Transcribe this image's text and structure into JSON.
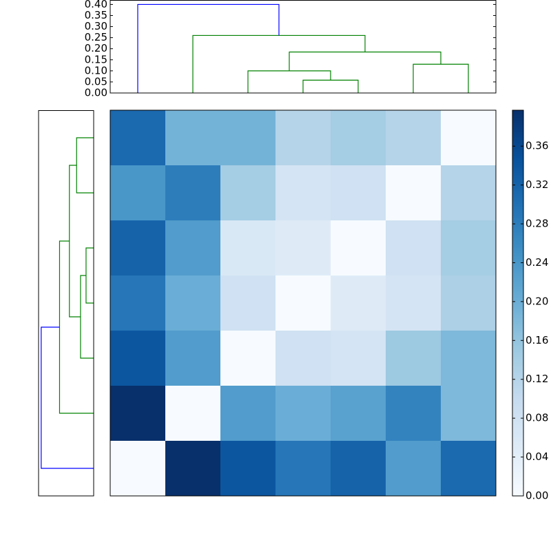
{
  "chart_data": [
    {
      "type": "dendrogram",
      "orientation": "top",
      "linkage": [
        [
          3,
          4,
          0.058
        ],
        [
          2,
          7,
          0.1
        ],
        [
          5,
          6,
          0.13
        ],
        [
          8,
          9,
          0.185
        ],
        [
          1,
          10,
          0.26
        ],
        [
          0,
          11,
          0.4
        ]
      ],
      "colors": [
        "#008000",
        "#008000",
        "#008000",
        "#008000",
        "#008000",
        "#0000ff"
      ],
      "ylim": [
        0,
        0.42
      ],
      "yticks": [
        {
          "value": 0,
          "label": "0.00"
        },
        {
          "value": 0.05,
          "label": "0.05"
        },
        {
          "value": 0.1,
          "label": "0.10"
        },
        {
          "value": 0.15,
          "label": "0.15"
        },
        {
          "value": 0.2,
          "label": "0.20"
        },
        {
          "value": 0.25,
          "label": "0.25"
        },
        {
          "value": 0.3,
          "label": "0.30"
        },
        {
          "value": 0.35,
          "label": "0.35"
        },
        {
          "value": 0.4,
          "label": "0.40"
        }
      ]
    },
    {
      "type": "dendrogram",
      "orientation": "left",
      "linkage": [
        [
          2,
          3,
          0.058
        ],
        [
          7,
          4,
          0.1
        ],
        [
          0,
          1,
          0.13
        ],
        [
          9,
          8,
          0.185
        ],
        [
          10,
          5,
          0.26
        ],
        [
          11,
          6,
          0.4
        ]
      ],
      "colors": [
        "#008000",
        "#008000",
        "#008000",
        "#008000",
        "#008000",
        "#0000ff"
      ],
      "xlim": [
        0.42,
        0
      ]
    },
    {
      "type": "heatmap",
      "colormap": "Blues",
      "matrix": [
        [
          0.31,
          0.19,
          0.19,
          0.12,
          0.14,
          0.12,
          0.0
        ],
        [
          0.24,
          0.28,
          0.14,
          0.07,
          0.08,
          0.0,
          0.12
        ],
        [
          0.32,
          0.23,
          0.06,
          0.05,
          0.0,
          0.08,
          0.14
        ],
        [
          0.29,
          0.2,
          0.08,
          0.0,
          0.05,
          0.07,
          0.13
        ],
        [
          0.34,
          0.23,
          0.0,
          0.08,
          0.07,
          0.15,
          0.18
        ],
        [
          0.4,
          0.0,
          0.23,
          0.2,
          0.22,
          0.27,
          0.18
        ],
        [
          0.0,
          0.4,
          0.34,
          0.29,
          0.32,
          0.23,
          0.31
        ]
      ],
      "clim": [
        0,
        0.397
      ],
      "cticks": [
        {
          "value": 0,
          "label": "0.00"
        },
        {
          "value": 0.04,
          "label": "0.04"
        },
        {
          "value": 0.08,
          "label": "0.08"
        },
        {
          "value": 0.12,
          "label": "0.12"
        },
        {
          "value": 0.16,
          "label": "0.16"
        },
        {
          "value": 0.2,
          "label": "0.20"
        },
        {
          "value": 0.24,
          "label": "0.24"
        },
        {
          "value": 0.28,
          "label": "0.28"
        },
        {
          "value": 0.32,
          "label": "0.32"
        },
        {
          "value": 0.36,
          "label": "0.36"
        }
      ]
    }
  ]
}
